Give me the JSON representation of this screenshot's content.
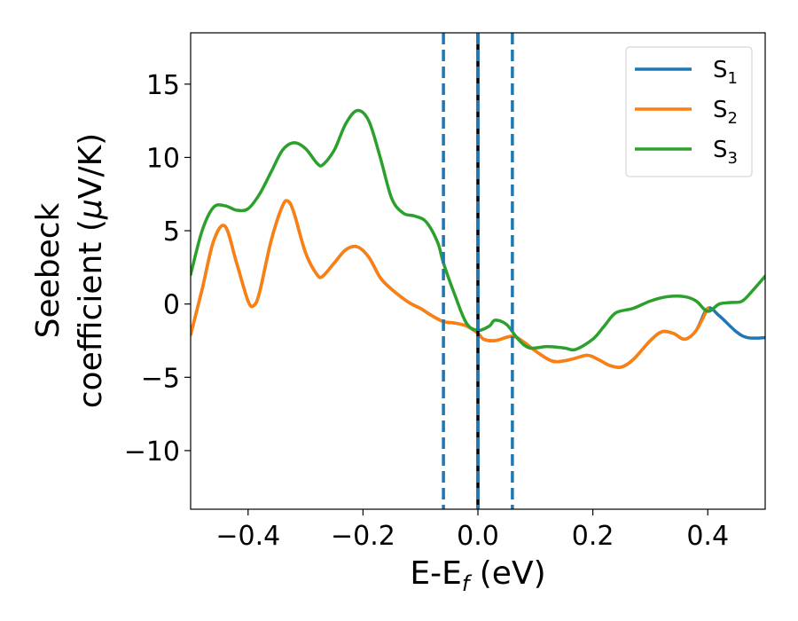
{
  "chart_data": {
    "type": "line",
    "xlabel": {
      "base": "E-E",
      "sub": "f",
      "rest": " (eV)"
    },
    "ylabel": {
      "line1": "Seebeck",
      "line2_pre": "coefficient  (",
      "mu": "μ",
      "line2_post": "V/K)"
    },
    "xlim": [
      -0.5,
      0.5
    ],
    "ylim": [
      -14,
      18.5
    ],
    "xticks": [
      -0.4,
      -0.2,
      0.0,
      0.2,
      0.4
    ],
    "xtick_labels": [
      "−0.4",
      "−0.2",
      "0.0",
      "0.2",
      "0.4"
    ],
    "yticks": [
      -10,
      -5,
      0,
      5,
      10,
      15
    ],
    "ytick_labels": [
      "−10",
      "−5",
      "0",
      "5",
      "10",
      "15"
    ],
    "grid": false,
    "legend_position": "top-right",
    "vlines": [
      {
        "x": -0.06,
        "style": "dashed",
        "color": "#1f77b4"
      },
      {
        "x": 0.0,
        "style": "solid",
        "color": "#000000"
      },
      {
        "x": 0.0,
        "style": "dashed",
        "color": "#1f77b4"
      },
      {
        "x": 0.06,
        "style": "dashed",
        "color": "#1f77b4"
      }
    ],
    "series": [
      {
        "name": {
          "base": "S",
          "sub": "1"
        },
        "color": "#1f77b4",
        "points": [
          [
            -0.5,
            -2.1
          ],
          [
            -0.48,
            1.0
          ],
          [
            -0.46,
            4.3
          ],
          [
            -0.44,
            5.3
          ],
          [
            -0.42,
            2.8
          ],
          [
            -0.4,
            0.2
          ],
          [
            -0.39,
            -0.1
          ],
          [
            -0.38,
            0.8
          ],
          [
            -0.36,
            4.3
          ],
          [
            -0.34,
            6.7
          ],
          [
            -0.33,
            7.0
          ],
          [
            -0.32,
            6.2
          ],
          [
            -0.3,
            3.5
          ],
          [
            -0.28,
            2.0
          ],
          [
            -0.27,
            1.9
          ],
          [
            -0.25,
            2.8
          ],
          [
            -0.23,
            3.7
          ],
          [
            -0.21,
            3.9
          ],
          [
            -0.19,
            3.2
          ],
          [
            -0.17,
            1.8
          ],
          [
            -0.15,
            1.0
          ],
          [
            -0.12,
            0.1
          ],
          [
            -0.1,
            -0.3
          ],
          [
            -0.08,
            -0.8
          ],
          [
            -0.06,
            -1.2
          ],
          [
            -0.04,
            -1.3
          ],
          [
            -0.02,
            -1.5
          ],
          [
            0.0,
            -2.0
          ],
          [
            0.01,
            -2.4
          ],
          [
            0.03,
            -2.5
          ],
          [
            0.06,
            -2.2
          ],
          [
            0.08,
            -2.6
          ],
          [
            0.1,
            -3.2
          ],
          [
            0.13,
            -3.9
          ],
          [
            0.16,
            -3.8
          ],
          [
            0.19,
            -3.5
          ],
          [
            0.21,
            -3.8
          ],
          [
            0.23,
            -4.2
          ],
          [
            0.25,
            -4.3
          ],
          [
            0.27,
            -3.8
          ],
          [
            0.3,
            -2.5
          ],
          [
            0.32,
            -1.9
          ],
          [
            0.34,
            -2.0
          ],
          [
            0.36,
            -2.4
          ],
          [
            0.38,
            -1.8
          ],
          [
            0.4,
            -0.3
          ],
          [
            0.42,
            -0.8
          ],
          [
            0.45,
            -1.9
          ],
          [
            0.47,
            -2.3
          ],
          [
            0.5,
            -2.3
          ]
        ]
      },
      {
        "name": {
          "base": "S",
          "sub": "2"
        },
        "color": "#ff7f0e",
        "points": [
          [
            -0.5,
            -2.1
          ],
          [
            -0.48,
            1.0
          ],
          [
            -0.46,
            4.3
          ],
          [
            -0.44,
            5.3
          ],
          [
            -0.42,
            2.8
          ],
          [
            -0.4,
            0.2
          ],
          [
            -0.39,
            -0.1
          ],
          [
            -0.38,
            0.8
          ],
          [
            -0.36,
            4.3
          ],
          [
            -0.34,
            6.7
          ],
          [
            -0.33,
            7.0
          ],
          [
            -0.32,
            6.2
          ],
          [
            -0.3,
            3.5
          ],
          [
            -0.28,
            2.0
          ],
          [
            -0.27,
            1.9
          ],
          [
            -0.25,
            2.8
          ],
          [
            -0.23,
            3.7
          ],
          [
            -0.21,
            3.9
          ],
          [
            -0.19,
            3.2
          ],
          [
            -0.17,
            1.8
          ],
          [
            -0.15,
            1.0
          ],
          [
            -0.12,
            0.1
          ],
          [
            -0.1,
            -0.3
          ],
          [
            -0.08,
            -0.8
          ],
          [
            -0.06,
            -1.2
          ],
          [
            -0.04,
            -1.3
          ],
          [
            -0.02,
            -1.5
          ],
          [
            0.0,
            -2.0
          ],
          [
            0.01,
            -2.4
          ],
          [
            0.03,
            -2.5
          ],
          [
            0.06,
            -2.2
          ],
          [
            0.08,
            -2.6
          ],
          [
            0.1,
            -3.2
          ],
          [
            0.13,
            -3.9
          ],
          [
            0.16,
            -3.8
          ],
          [
            0.19,
            -3.5
          ],
          [
            0.21,
            -3.8
          ],
          [
            0.23,
            -4.2
          ],
          [
            0.25,
            -4.3
          ],
          [
            0.27,
            -3.8
          ],
          [
            0.3,
            -2.5
          ],
          [
            0.32,
            -1.9
          ],
          [
            0.34,
            -2.0
          ],
          [
            0.36,
            -2.4
          ],
          [
            0.38,
            -1.8
          ],
          [
            0.4,
            -0.3
          ]
        ]
      },
      {
        "name": {
          "base": "S",
          "sub": "3"
        },
        "color": "#2ca02c",
        "points": [
          [
            -0.5,
            2.0
          ],
          [
            -0.48,
            5.0
          ],
          [
            -0.46,
            6.6
          ],
          [
            -0.44,
            6.7
          ],
          [
            -0.42,
            6.4
          ],
          [
            -0.4,
            6.5
          ],
          [
            -0.38,
            7.5
          ],
          [
            -0.36,
            9.0
          ],
          [
            -0.34,
            10.5
          ],
          [
            -0.32,
            11.0
          ],
          [
            -0.3,
            10.6
          ],
          [
            -0.28,
            9.6
          ],
          [
            -0.27,
            9.5
          ],
          [
            -0.25,
            10.5
          ],
          [
            -0.23,
            12.3
          ],
          [
            -0.21,
            13.2
          ],
          [
            -0.19,
            12.5
          ],
          [
            -0.17,
            10.0
          ],
          [
            -0.15,
            7.2
          ],
          [
            -0.13,
            6.2
          ],
          [
            -0.11,
            6.0
          ],
          [
            -0.09,
            5.6
          ],
          [
            -0.07,
            4.2
          ],
          [
            -0.06,
            2.8
          ],
          [
            -0.04,
            0.6
          ],
          [
            -0.02,
            -1.3
          ],
          [
            0.0,
            -1.8
          ],
          [
            0.02,
            -1.5
          ],
          [
            0.03,
            -1.1
          ],
          [
            0.05,
            -1.4
          ],
          [
            0.07,
            -2.4
          ],
          [
            0.09,
            -3.0
          ],
          [
            0.12,
            -2.9
          ],
          [
            0.15,
            -3.0
          ],
          [
            0.17,
            -3.1
          ],
          [
            0.2,
            -2.4
          ],
          [
            0.22,
            -1.5
          ],
          [
            0.24,
            -0.6
          ],
          [
            0.27,
            -0.3
          ],
          [
            0.3,
            0.2
          ],
          [
            0.33,
            0.5
          ],
          [
            0.36,
            0.5
          ],
          [
            0.38,
            0.2
          ],
          [
            0.4,
            -0.5
          ],
          [
            0.42,
            0.0
          ],
          [
            0.44,
            0.1
          ],
          [
            0.46,
            0.2
          ],
          [
            0.48,
            1.0
          ],
          [
            0.5,
            1.9
          ]
        ]
      }
    ]
  }
}
